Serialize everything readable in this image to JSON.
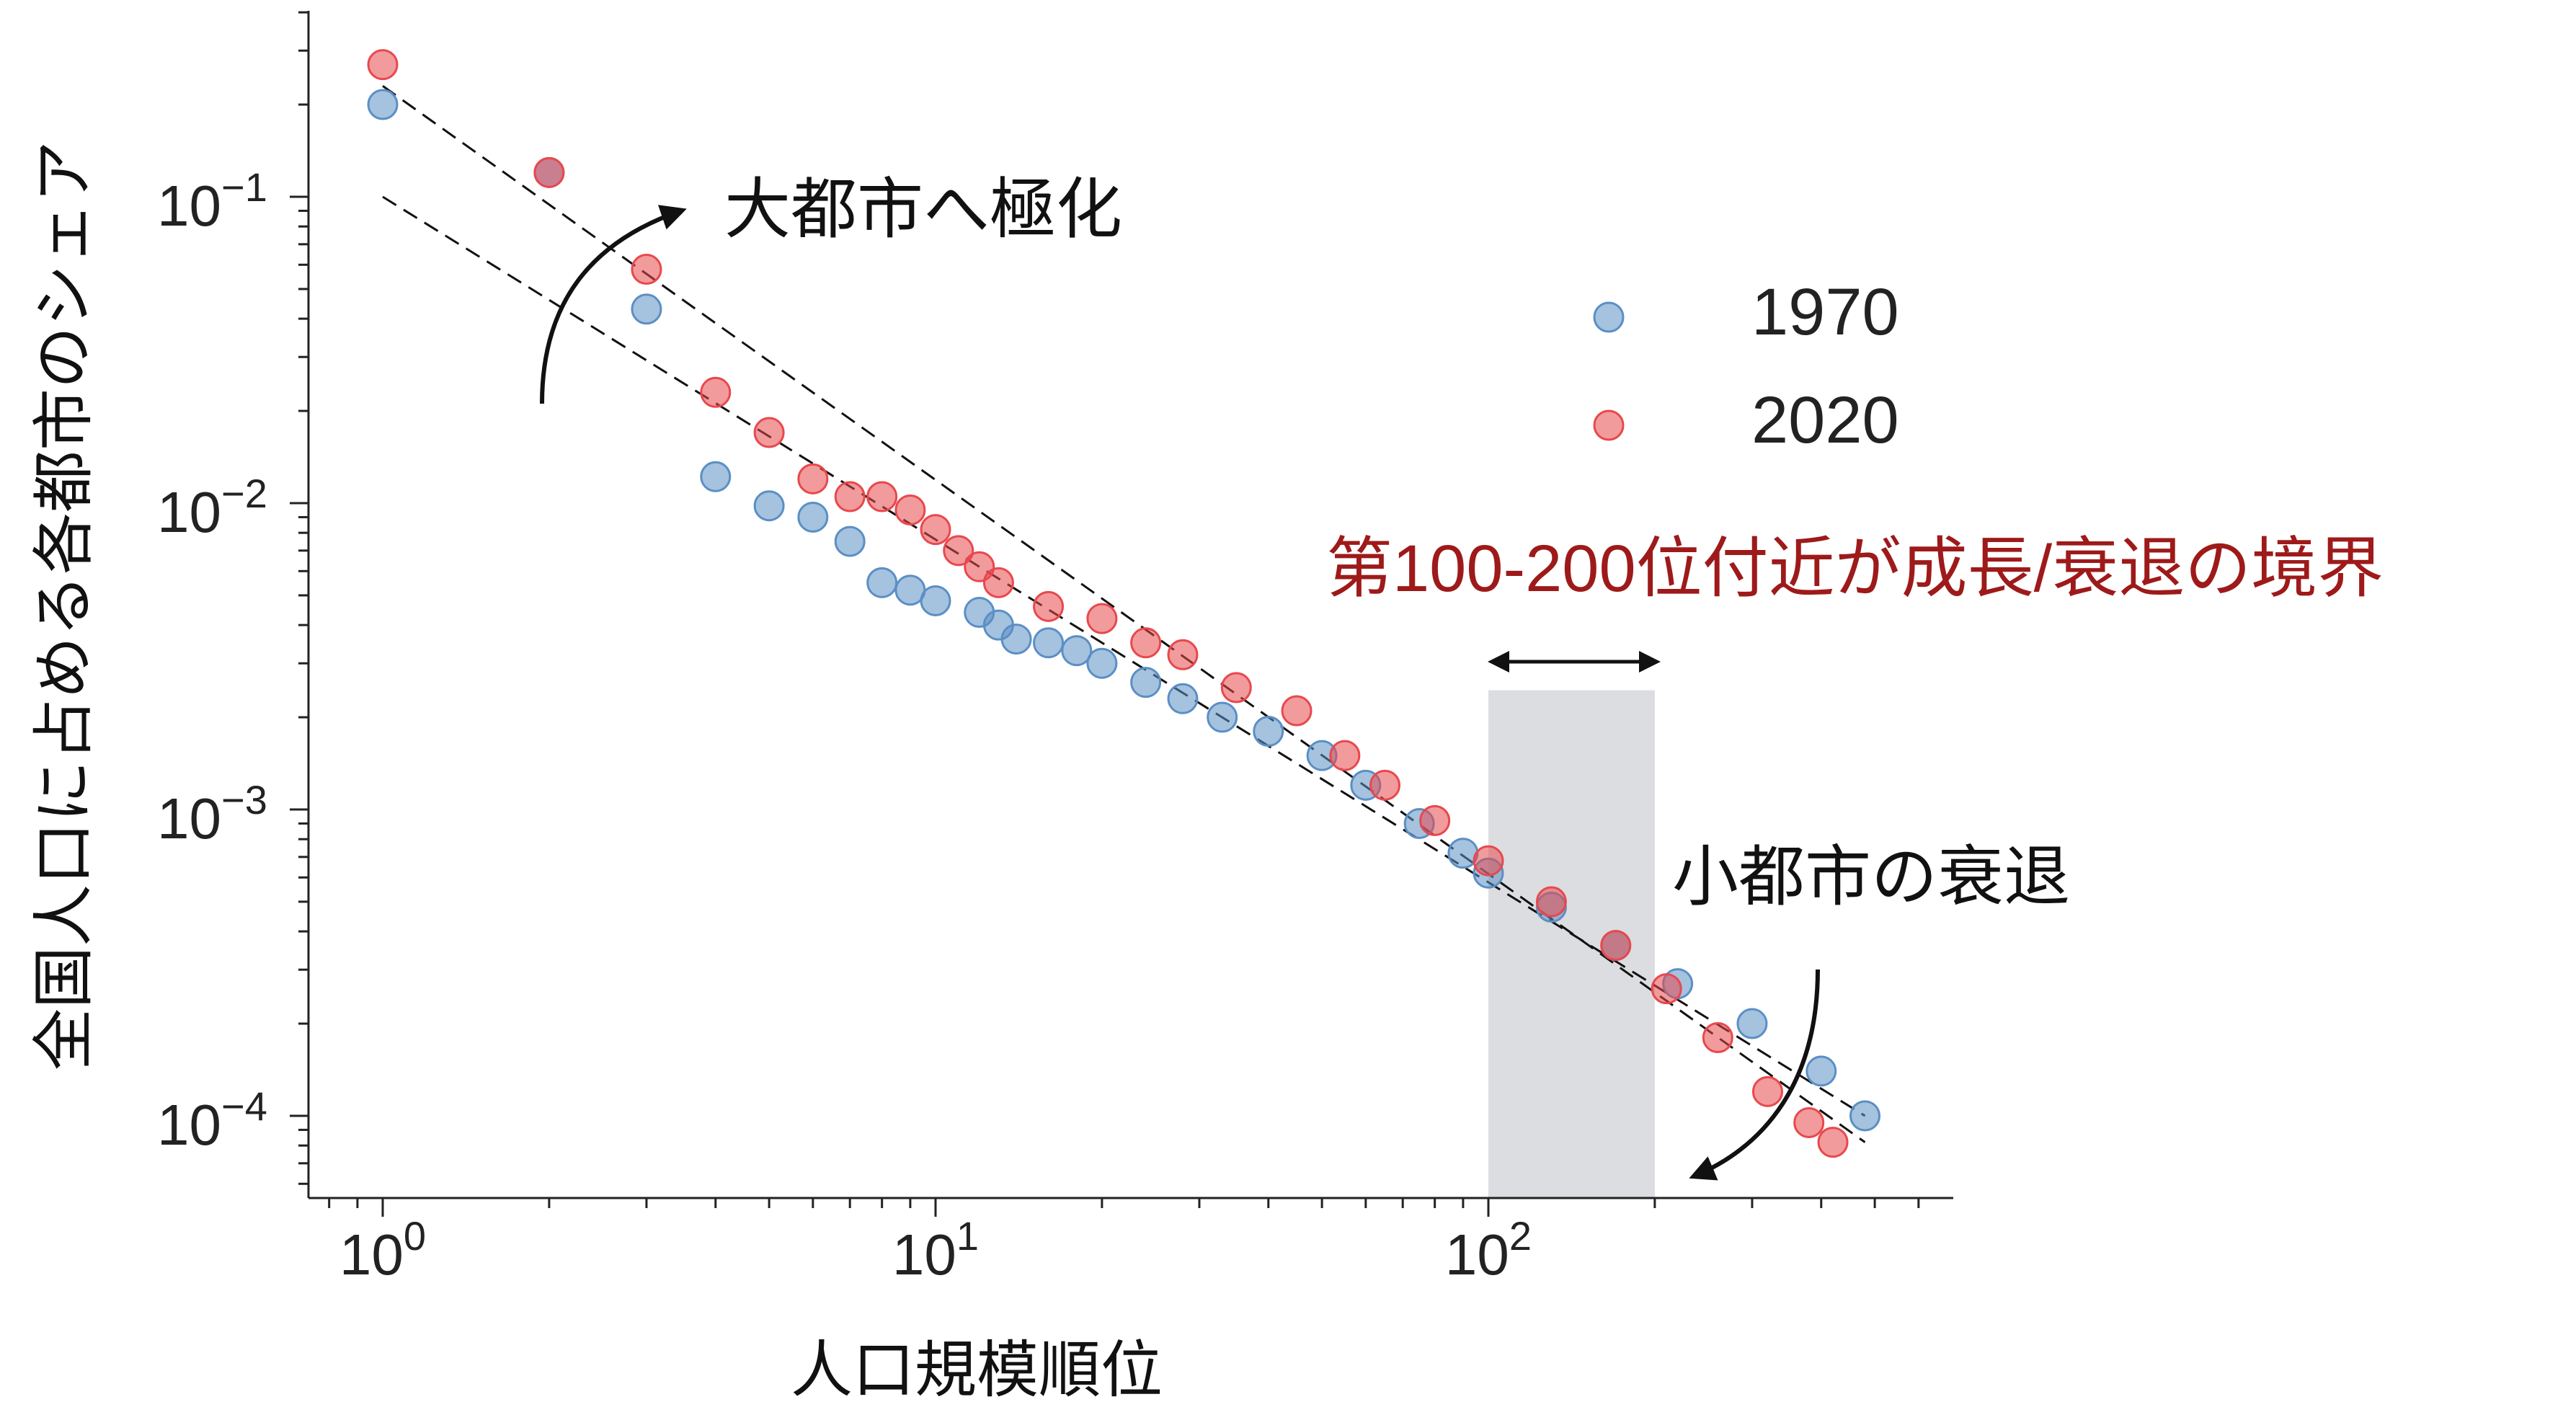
{
  "chart_data": {
    "type": "scatter",
    "xscale": "log",
    "yscale": "log",
    "xlim": [
      0.68,
      600
    ],
    "ylim": [
      5e-05,
      0.35
    ],
    "xlabel": "人口規模順位",
    "ylabel": "全国人口に占める各都市のシェア",
    "xticks": [
      {
        "value": 1,
        "base": "10",
        "exp": "0"
      },
      {
        "value": 10,
        "base": "10",
        "exp": "1"
      },
      {
        "value": 100,
        "base": "10",
        "exp": "2"
      }
    ],
    "yticks": [
      {
        "value": 0.1,
        "base": "10",
        "exp": "−1"
      },
      {
        "value": 0.01,
        "base": "10",
        "exp": "−2"
      },
      {
        "value": 0.001,
        "base": "10",
        "exp": "−3"
      },
      {
        "value": 0.0001,
        "base": "10",
        "exp": "−4"
      }
    ],
    "legend": {
      "position": "upper-right"
    },
    "series": [
      {
        "name": "1970",
        "color": "#5b8fc4",
        "points": [
          [
            1,
            0.2
          ],
          [
            2,
            0.12
          ],
          [
            3,
            0.043
          ],
          [
            4,
            0.0122
          ],
          [
            5,
            0.0098
          ],
          [
            6,
            0.009
          ],
          [
            7,
            0.0075
          ],
          [
            8,
            0.0055
          ],
          [
            9,
            0.0052
          ],
          [
            10,
            0.0048
          ],
          [
            12,
            0.0044
          ],
          [
            13,
            0.004
          ],
          [
            14,
            0.0036
          ],
          [
            16,
            0.0035
          ],
          [
            18,
            0.0033
          ],
          [
            20,
            0.003
          ],
          [
            24,
            0.0026
          ],
          [
            28,
            0.0023
          ],
          [
            33,
            0.002
          ],
          [
            40,
            0.0018
          ],
          [
            50,
            0.0015
          ],
          [
            60,
            0.0012
          ],
          [
            75,
            0.0009
          ],
          [
            90,
            0.00072
          ],
          [
            100,
            0.00062
          ],
          [
            130,
            0.00048
          ],
          [
            170,
            0.00036
          ],
          [
            220,
            0.00027
          ],
          [
            300,
            0.0002
          ],
          [
            400,
            0.00014
          ],
          [
            480,
            0.0001
          ]
        ]
      },
      {
        "name": "2020",
        "color": "#e8484d",
        "points": [
          [
            1,
            0.27
          ],
          [
            2,
            0.12
          ],
          [
            3,
            0.058
          ],
          [
            4,
            0.023
          ],
          [
            5,
            0.017
          ],
          [
            6,
            0.012
          ],
          [
            7,
            0.0105
          ],
          [
            8,
            0.0105
          ],
          [
            9,
            0.0095
          ],
          [
            10,
            0.0082
          ],
          [
            11,
            0.007
          ],
          [
            12,
            0.0062
          ],
          [
            13,
            0.0055
          ],
          [
            16,
            0.0046
          ],
          [
            20,
            0.0042
          ],
          [
            24,
            0.0035
          ],
          [
            28,
            0.0032
          ],
          [
            35,
            0.0025
          ],
          [
            45,
            0.0021
          ],
          [
            55,
            0.0015
          ],
          [
            65,
            0.0012
          ],
          [
            80,
            0.00092
          ],
          [
            100,
            0.00068
          ],
          [
            130,
            0.0005
          ],
          [
            170,
            0.00036
          ],
          [
            210,
            0.00026
          ],
          [
            260,
            0.00018
          ],
          [
            320,
            0.00012
          ],
          [
            380,
            9.5e-05
          ],
          [
            420,
            8.2e-05
          ]
        ]
      }
    ],
    "fit_lines": [
      {
        "color": "#111111",
        "style": "dashed",
        "x": [
          1,
          480
        ],
        "y": [
          0.23,
          8.2e-05
        ]
      },
      {
        "color": "#111111",
        "style": "dashed",
        "x": [
          1,
          480
        ],
        "y": [
          0.1,
          0.0001
        ]
      }
    ],
    "highlight_band": {
      "x_from": 100,
      "x_to": 200,
      "y_to": 0.00245,
      "color": "#dcdde0"
    },
    "annotations": {
      "boundary": {
        "text": "第100-200位付近が成長/衰退の境界",
        "color": "#9e1a1a"
      },
      "concentration": {
        "text": "大都市へ極化",
        "color": "#111111"
      },
      "decline": {
        "text": "小都市の衰退",
        "color": "#111111"
      }
    }
  }
}
